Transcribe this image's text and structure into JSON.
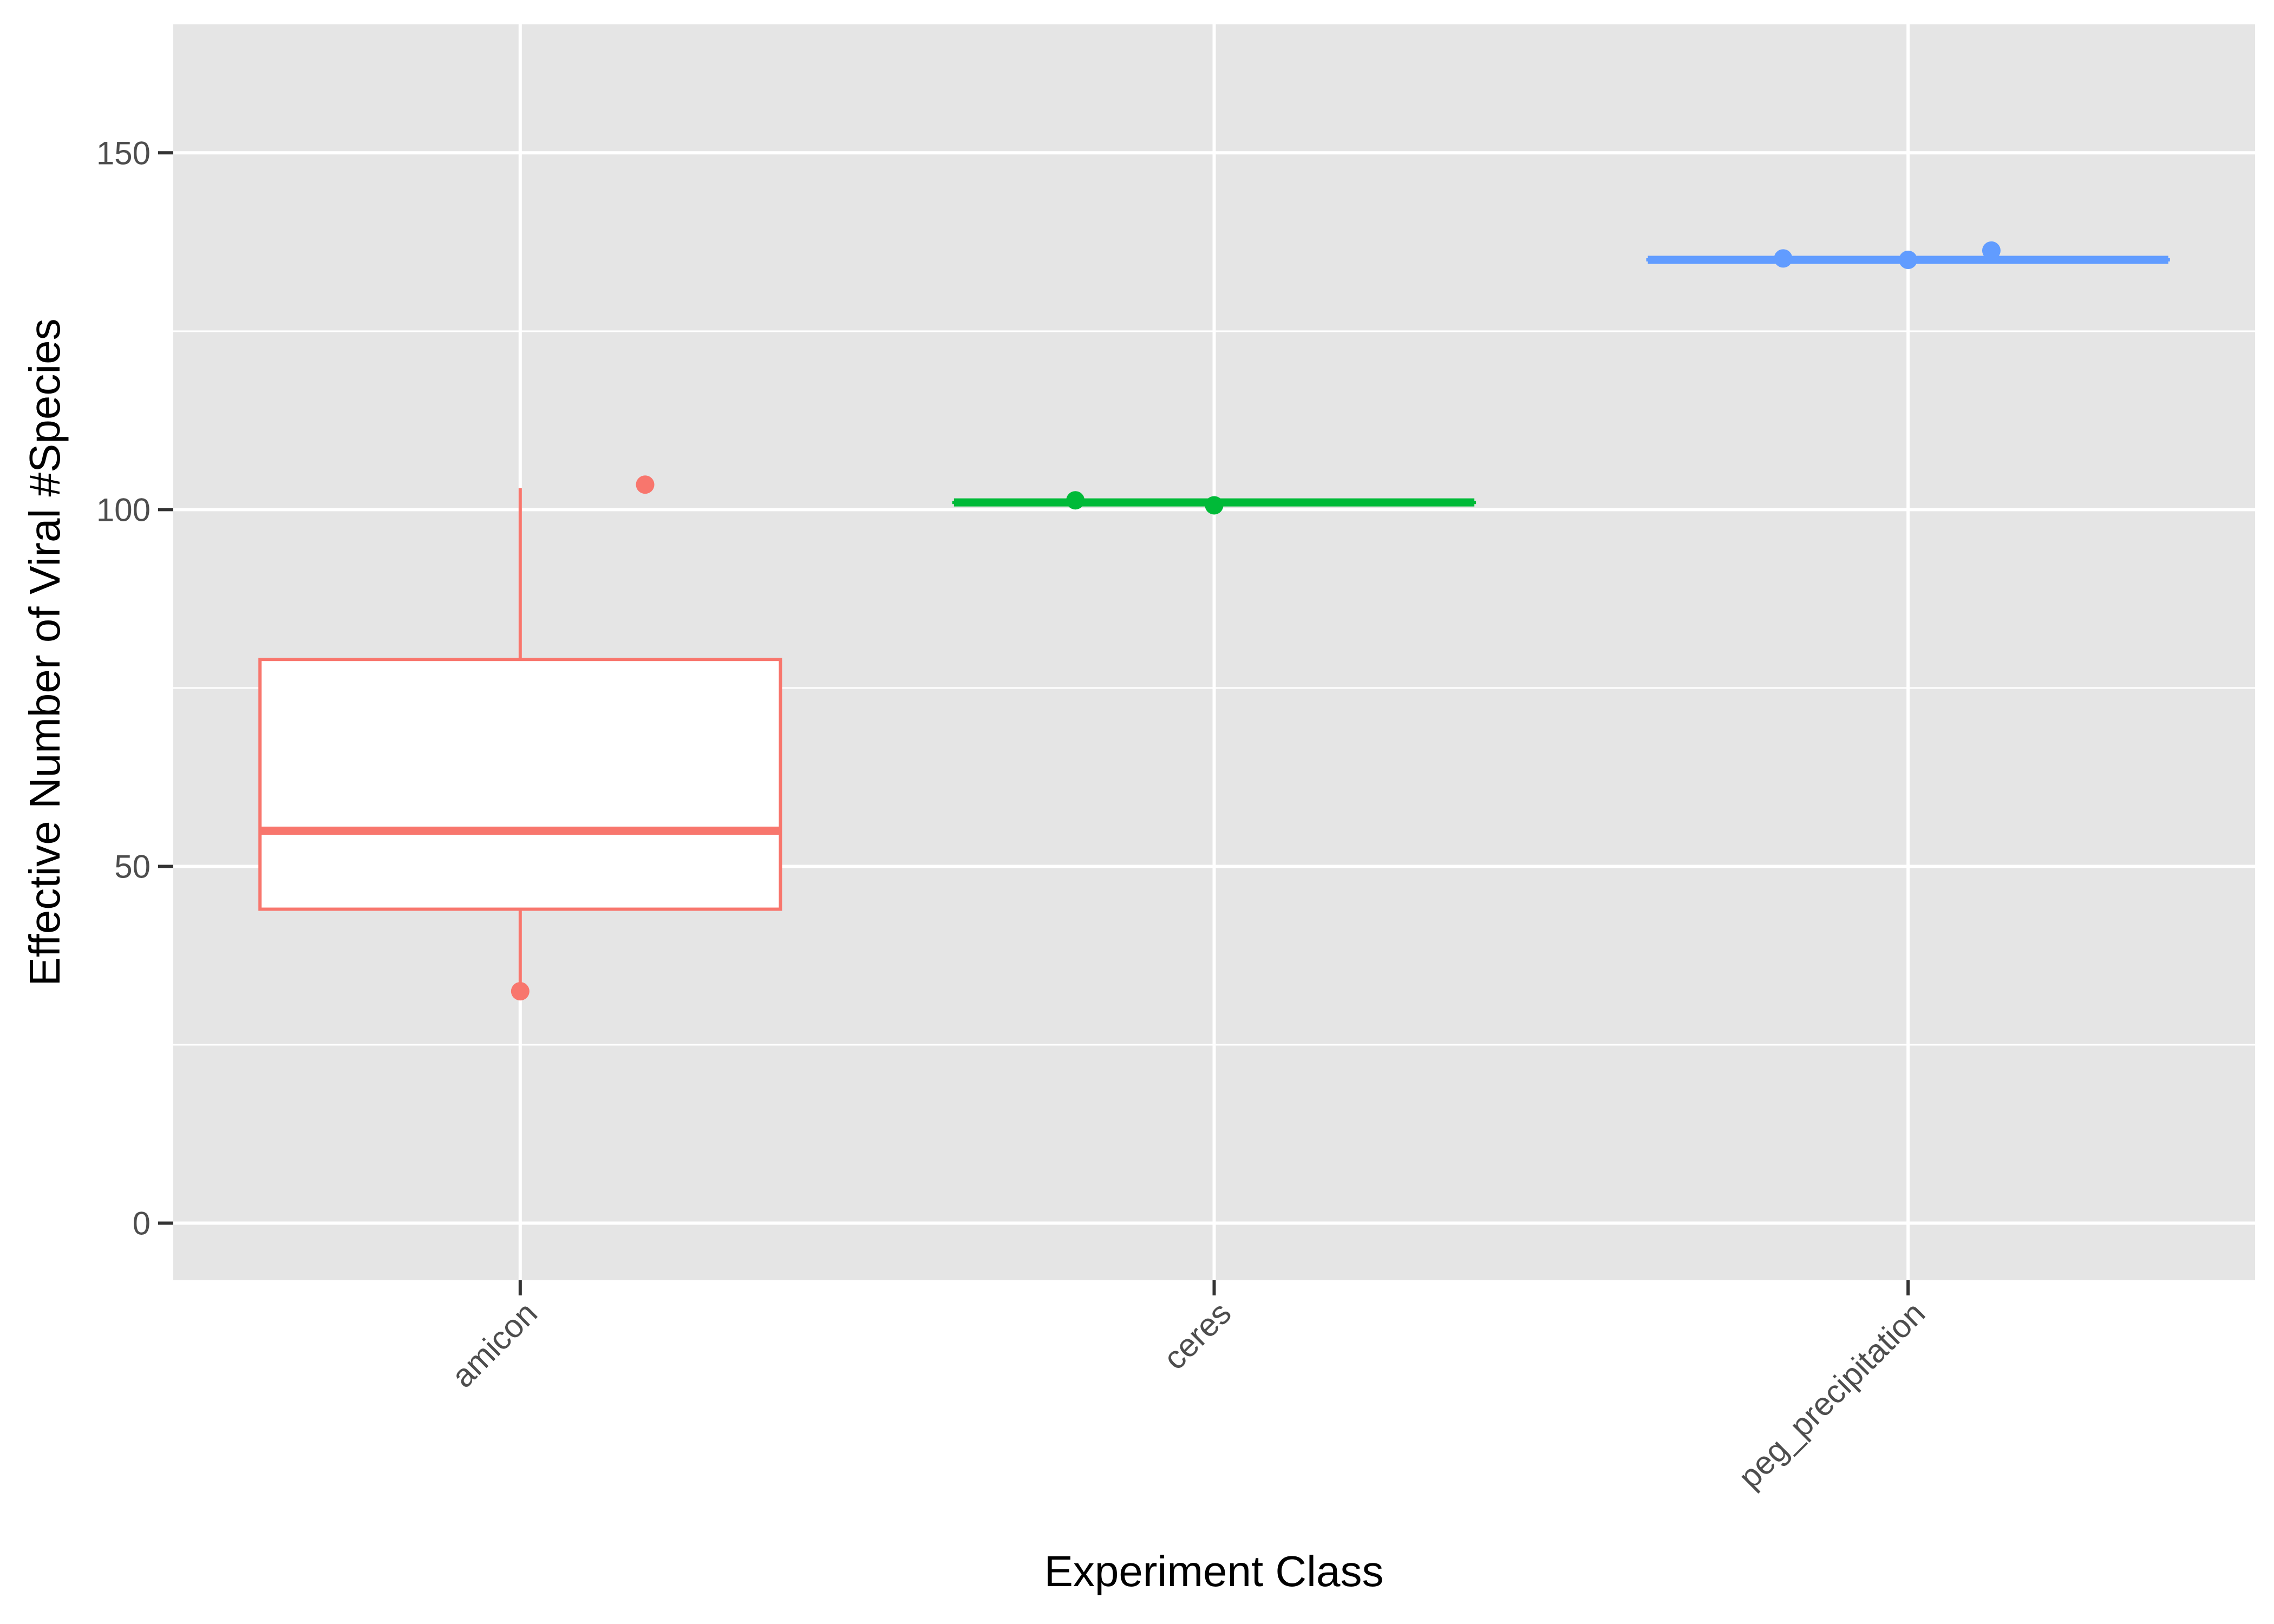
{
  "chart_data": {
    "type": "box",
    "xlabel": "Experiment Class",
    "ylabel": "Effective Number of Viral #Species",
    "ylim": [
      -8,
      168
    ],
    "yticks": [
      0,
      50,
      100,
      150
    ],
    "categories": [
      "amicon",
      "ceres",
      "peg_precipitation"
    ],
    "boxes": [
      {
        "category": "amicon",
        "color": "#F8766D",
        "q1": 44,
        "median": 55,
        "q3": 79,
        "whisker_low": 33,
        "whisker_high": 103
      },
      {
        "category": "ceres",
        "color": "#00BA38",
        "q1": 101,
        "median": 101,
        "q3": 101,
        "whisker_low": 101,
        "whisker_high": 101
      },
      {
        "category": "peg_precipitation",
        "color": "#619CFF",
        "q1": 135,
        "median": 135,
        "q3": 135,
        "whisker_low": 135,
        "whisker_high": 135
      }
    ],
    "points": [
      {
        "category": "amicon",
        "jitter": 0.18,
        "y": 103.5
      },
      {
        "category": "amicon",
        "jitter": 0.0,
        "y": 32.5
      },
      {
        "category": "ceres",
        "jitter": -0.2,
        "y": 101.3
      },
      {
        "category": "ceres",
        "jitter": 0.0,
        "y": 100.6
      },
      {
        "category": "peg_precipitation",
        "jitter": -0.18,
        "y": 135.2
      },
      {
        "category": "peg_precipitation",
        "jitter": 0.0,
        "y": 135.0
      },
      {
        "category": "peg_precipitation",
        "jitter": 0.12,
        "y": 136.3
      }
    ],
    "grid": true,
    "legend": "none",
    "colors": {
      "panel_background": "#E5E5E5",
      "grid_line": "#FFFFFF",
      "box_fill": "#FFFFFF",
      "tick_text": "#4D4D4D",
      "tick_mark": "#333333"
    }
  }
}
